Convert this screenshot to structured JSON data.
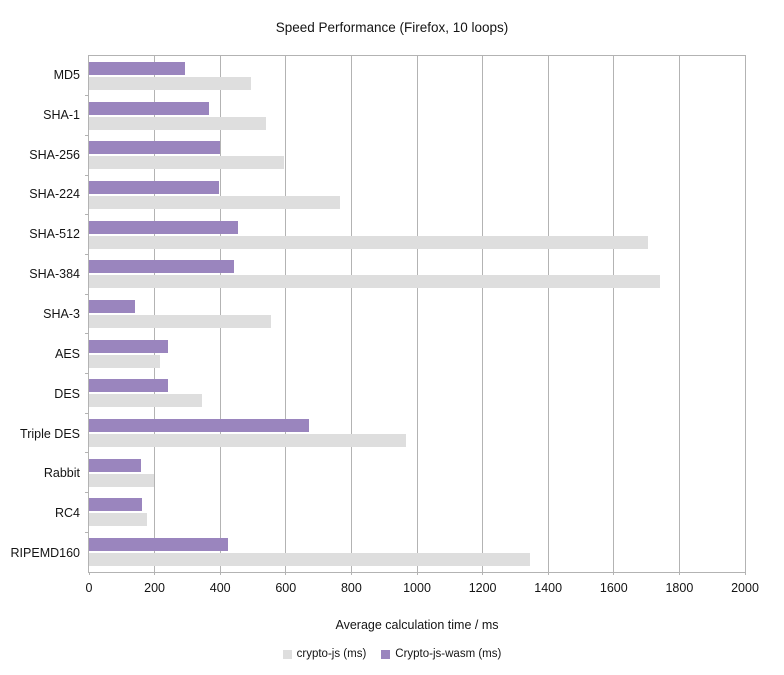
{
  "title": "Speed Performance (Firefox, 10 loops)",
  "chart_data": {
    "type": "bar",
    "orientation": "horizontal",
    "title": "Speed Performance (Firefox, 10 loops)",
    "xlabel": "Average calculation time / ms",
    "ylabel": "",
    "xlim": [
      0,
      2000
    ],
    "x_ticks": [
      0,
      200,
      400,
      600,
      800,
      1000,
      1200,
      1400,
      1600,
      1800,
      2000
    ],
    "grid": "vertical",
    "legend_position": "bottom",
    "categories": [
      "MD5",
      "SHA-1",
      "SHA-256",
      "SHA-224",
      "SHA-512",
      "SHA-384",
      "SHA-3",
      "AES",
      "DES",
      "Triple DES",
      "Rabbit",
      "RC4",
      "RIPEMD160"
    ],
    "series": [
      {
        "name": "crypto-js (ms)",
        "color": "#dedede",
        "values": [
          495,
          540,
          595,
          765,
          1703,
          1740,
          555,
          215,
          346,
          967,
          198,
          178,
          1343
        ]
      },
      {
        "name": "Crypto-js-wasm (ms)",
        "color": "#9a85be",
        "values": [
          293,
          366,
          399,
          395,
          454,
          443,
          140,
          242,
          242,
          672,
          158,
          162,
          425
        ]
      }
    ]
  },
  "colors": {
    "grid": "#b3b3b3",
    "axis_text": "#141414",
    "background": "#ffffff"
  }
}
